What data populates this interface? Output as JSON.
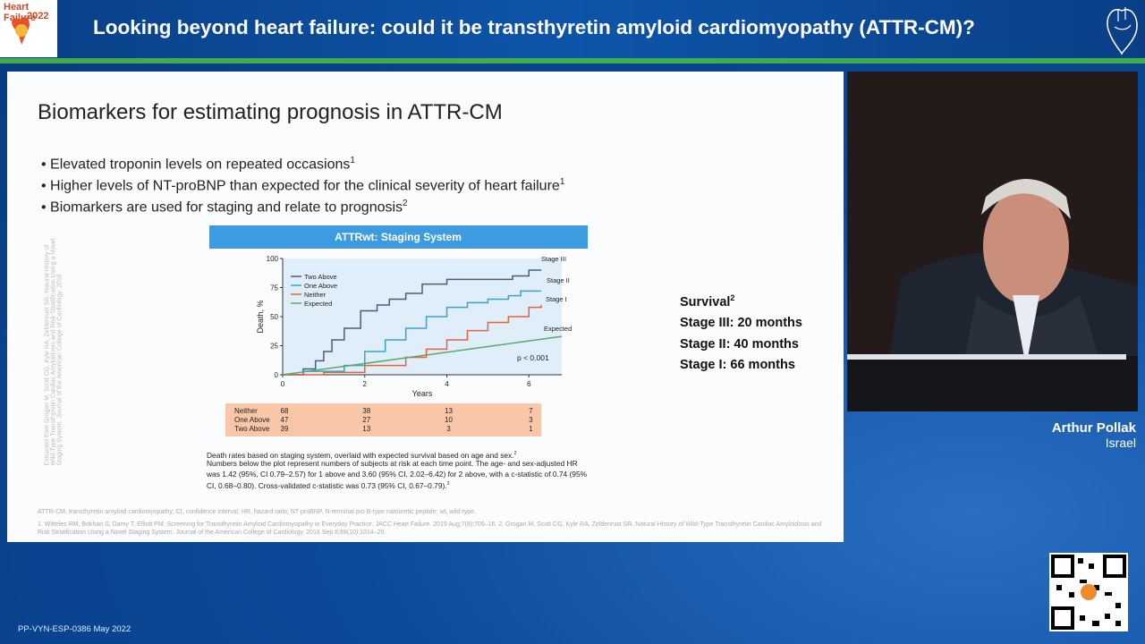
{
  "header": {
    "logo_text": [
      "Heart Failure",
      "2022"
    ],
    "title": "Looking beyond heart failure: could it be transthyretin amyloid cardiomyopathy (ATTR-CM)?"
  },
  "slide": {
    "title": "Biomarkers for estimating prognosis in ATTR-CM",
    "bullets": [
      {
        "text": "Elevated troponin levels on repeated occasions",
        "sup": "1"
      },
      {
        "text": "Higher levels of NT-proBNP than expected for the clinical severity of heart failure",
        "sup": "1"
      },
      {
        "text": "Biomarkers are used for staging and relate to prognosis",
        "sup": "2"
      }
    ],
    "side_note": "Extracted from Grogan M, Scott CG, Kyle RA, Zeldenrust SR. Natural History of Wild-Type Transthyretin Cardiac Amyloidosis and Risk Stratification Using a Novel Staging System. Journal of the American College of Cardiology. 2016",
    "figure": {
      "type": "line",
      "title": "ATTRwt: Staging System",
      "xlabel": "Years",
      "ylabel": "Death, %",
      "xlim": [
        0,
        6.8
      ],
      "ylim": [
        0,
        100
      ],
      "xticks": [
        0,
        2,
        4,
        6
      ],
      "yticks": [
        0,
        25,
        50,
        75,
        100
      ],
      "series": [
        {
          "name": "Two Above",
          "color": "#4d5b7c",
          "step": true,
          "x": [
            0,
            0.5,
            0.8,
            1,
            1.2,
            1.5,
            1.9,
            2.3,
            2.6,
            3,
            3.4,
            4,
            5,
            5.6,
            6,
            6.3
          ],
          "values": [
            0,
            5,
            12,
            20,
            30,
            40,
            55,
            60,
            65,
            70,
            78,
            82,
            82,
            85,
            90,
            90
          ]
        },
        {
          "name": "One Above",
          "color": "#3ba3c4",
          "step": true,
          "x": [
            0,
            0.5,
            1.5,
            2,
            2.5,
            3,
            3.5,
            4,
            4.5,
            5,
            5.5,
            5.8,
            6.3
          ],
          "values": [
            0,
            3,
            8,
            20,
            30,
            40,
            50,
            58,
            62,
            65,
            68,
            72,
            72
          ]
        },
        {
          "name": "Neither",
          "color": "#e8603c",
          "step": true,
          "x": [
            0,
            1,
            2,
            3,
            3.5,
            4,
            4.5,
            5,
            5.5,
            6,
            6.3
          ],
          "values": [
            0,
            2,
            8,
            15,
            22,
            30,
            38,
            45,
            50,
            58,
            60
          ]
        },
        {
          "name": "Expected",
          "color": "#5aa86e",
          "step": false,
          "x": [
            0,
            6.8
          ],
          "values": [
            0,
            33
          ]
        }
      ],
      "stage_labels": [
        "Stage III",
        "Stage II",
        "Stage I",
        "Expected"
      ],
      "annotation": "p < 0.001",
      "risk_table": [
        {
          "label": "Neither",
          "values": [
            68,
            38,
            13,
            7
          ]
        },
        {
          "label": "One Above",
          "values": [
            47,
            27,
            10,
            3
          ]
        },
        {
          "label": "Two Above",
          "values": [
            39,
            13,
            3,
            1
          ]
        }
      ]
    },
    "caption": [
      {
        "text": "Death rates based on staging system, overlaid with expected survival based on age and sex.",
        "sup": "2"
      },
      {
        "text": "Numbers below the plot represent numbers of subjects at risk at each time point. The age- and sex-adjusted HR was 1.42 (95%, CI 0.79–2.57) for 1 above and 3.60 (95% CI, 2.02–6.42) for 2 above, with a c-statistic of 0.74 (95% CI, 0.68–0.80). Cross-validated c-statistic was 0.73 (95% CI, 0.67–0.79).",
        "sup": "2"
      }
    ],
    "survival": {
      "title": "Survival",
      "sup": "2",
      "items": [
        "Stage III: 20 months",
        "Stage II: 40 months",
        "Stage I: 66 months"
      ]
    },
    "abbreviations": "ATTR-CM, transthyretin amyloid cardiomyopathy; CI, confidence interval; HR, hazard ratio; NT-proBNP, N-terminal pro B-type natriuretic peptide; wt, wild-type.",
    "references": "1. Witteles RM, Bokhari S, Damy T, Elliott PM. Screening for Transthyretin Amyloid Cardiomyopathy in Everyday Practice. JACC Heart Failure. 2019 Aug;7(8):709–16. 2. Grogan M, Scott CG, Kyle RA, Zeldenrust SR. Natural History of Wild-Type Transthyretin Cardiac Amyloidosis and Risk Stratification Using a Novel Staging System. Journal of the American College of Cardiology. 2016 Sep 6;68(10):1014–20."
  },
  "speaker": {
    "name": "Arthur Pollak",
    "country": "Israel"
  },
  "footer": "PP-VYN-ESP-0386 May 2022"
}
